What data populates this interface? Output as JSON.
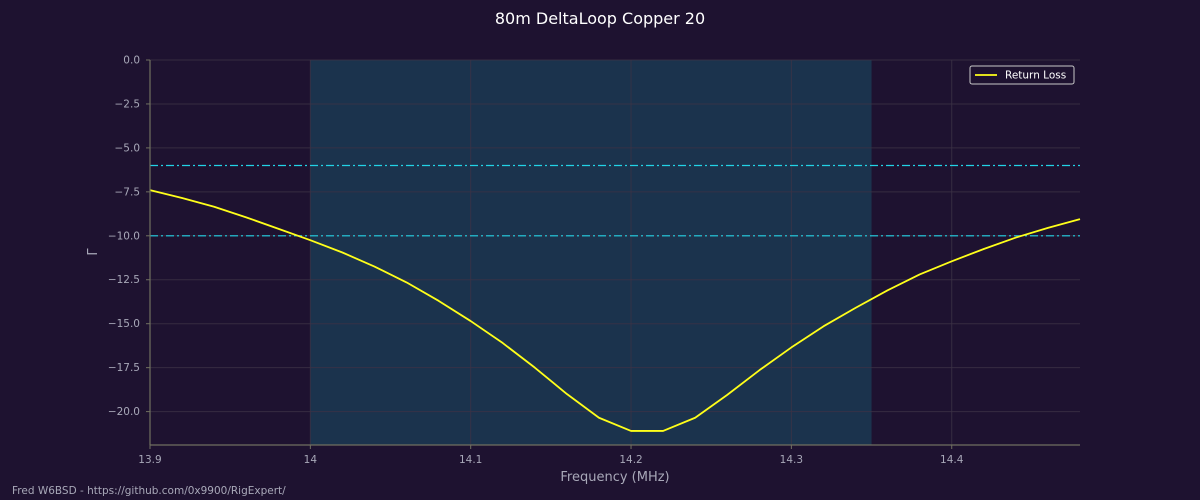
{
  "chart_data": {
    "type": "line",
    "title": "80m DeltaLoop Copper 20",
    "xlabel": "Frequency (MHz)",
    "ylabel": "Γ",
    "xlim": [
      13.9,
      14.48
    ],
    "ylim": [
      -21.9,
      0
    ],
    "xticks": [
      13.9,
      14.0,
      14.1,
      14.2,
      14.3,
      14.4
    ],
    "xtick_labels": [
      "13.9",
      "14",
      "14.1",
      "14.2",
      "14.3",
      "14.4"
    ],
    "yticks": [
      0,
      -2.5,
      -5,
      -7.5,
      -10,
      -12.5,
      -15,
      -17.5,
      -20
    ],
    "ytick_labels": [
      "0.0",
      "−2.5",
      "−5.0",
      "−7.5",
      "−10.0",
      "−12.5",
      "−15.0",
      "−17.5",
      "−20.0"
    ],
    "grid": true,
    "legend_position": "top-right",
    "band": {
      "x_start": 14.0,
      "x_end": 14.35,
      "color": "#1b3a52"
    },
    "reference_lines": [
      {
        "y": -6,
        "style": "dash-dot",
        "color": "#22d3e6"
      },
      {
        "y": -10,
        "style": "dash-dot",
        "color": "#22d3e6"
      }
    ],
    "series": [
      {
        "name": "Return Loss",
        "color": "#ffff1a",
        "x": [
          13.9,
          13.92,
          13.94,
          13.96,
          13.98,
          14.0,
          14.02,
          14.04,
          14.06,
          14.08,
          14.1,
          14.12,
          14.14,
          14.16,
          14.18,
          14.2,
          14.22,
          14.24,
          14.26,
          14.28,
          14.3,
          14.32,
          14.34,
          14.36,
          14.38,
          14.4,
          14.42,
          14.44,
          14.46,
          14.48
        ],
        "y": [
          -7.4,
          -7.85,
          -8.35,
          -8.95,
          -9.6,
          -10.25,
          -10.95,
          -11.75,
          -12.65,
          -13.7,
          -14.85,
          -16.1,
          -17.5,
          -19.0,
          -20.35,
          -21.1,
          -21.1,
          -20.35,
          -19.05,
          -17.65,
          -16.35,
          -15.15,
          -14.1,
          -13.1,
          -12.2,
          -11.45,
          -10.75,
          -10.1,
          -9.55,
          -9.05
        ]
      }
    ]
  },
  "footer": "Fred W6BSD - https://github.com/0x9900/RigExpert/",
  "colors": {
    "background": "#1e1230",
    "axis": "#707060",
    "grid": "#3c3346",
    "tick_text": "#a8a8b8",
    "title": "#ffffff",
    "label": "#a8a8b8",
    "legend_bg": "#1e1230",
    "legend_border": "#c8c8c8",
    "legend_text": "#ffffff"
  }
}
